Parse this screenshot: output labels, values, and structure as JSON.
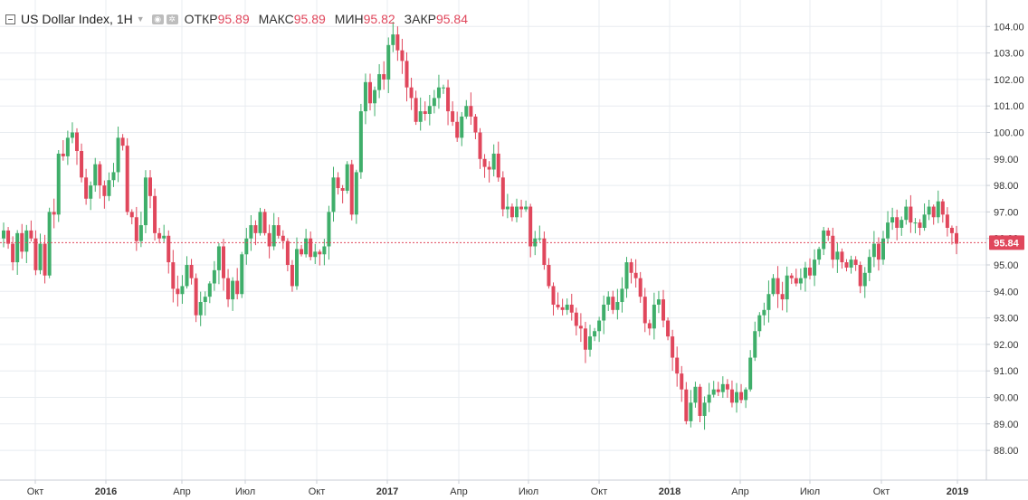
{
  "legend": {
    "title": "US Dollar Index, 1H",
    "open_label": "ОТКР",
    "open": "95.89",
    "high_label": "МАКС",
    "high": "95.89",
    "low_label": "МИН",
    "low": "95.82",
    "close_label": "ЗАКР",
    "close": "95.84",
    "icons": [
      "eye-icon",
      "gear-icon"
    ]
  },
  "colors": {
    "up": "#3fae6a",
    "down": "#e0475c",
    "grid": "#e8ecf0",
    "axis_text": "#333333",
    "price_line": "#e0475c"
  },
  "chart_data": {
    "type": "candlestick",
    "title": "US Dollar Index, 1H",
    "ylim": [
      87.8,
      104.3
    ],
    "y_ticks": [
      "88.00",
      "89.00",
      "90.00",
      "91.00",
      "92.00",
      "93.00",
      "94.00",
      "95.00",
      "96.00",
      "97.00",
      "98.00",
      "99.00",
      "100.00",
      "101.00",
      "102.00",
      "103.00",
      "104.00"
    ],
    "x_tick_labels": [
      "Окт",
      "2016",
      "Апр",
      "Июл",
      "Окт",
      "2017",
      "Апр",
      "Июл",
      "Окт",
      "2018",
      "Апр",
      "Июл",
      "Окт",
      "2019"
    ],
    "x_tick_bold": [
      "2016",
      "2017",
      "2018",
      "2019"
    ],
    "last_price": "95.84",
    "grid": true,
    "closes": [
      96.3,
      95.8,
      95.1,
      96.2,
      95.5,
      96.3,
      96.0,
      94.8,
      95.8,
      94.6,
      97.0,
      96.9,
      99.2,
      99.1,
      99.8,
      100.0,
      99.3,
      98.3,
      97.5,
      98.0,
      98.8,
      98.0,
      97.6,
      98.2,
      98.5,
      99.8,
      99.5,
      97.0,
      96.8,
      95.9,
      96.5,
      98.3,
      97.6,
      96.2,
      96.0,
      96.1,
      95.1,
      94.1,
      93.9,
      94.2,
      95.0,
      94.5,
      93.1,
      93.6,
      93.8,
      94.3,
      94.8,
      95.7,
      94.5,
      93.7,
      94.4,
      93.9,
      95.4,
      96.0,
      96.5,
      96.2,
      97.0,
      96.2,
      95.7,
      96.5,
      96.1,
      95.9,
      95.0,
      94.2,
      95.6,
      95.4,
      96.0,
      95.3,
      95.5,
      95.4,
      95.7,
      97.0,
      98.3,
      97.9,
      97.8,
      98.8,
      96.9,
      98.5,
      100.8,
      101.9,
      101.1,
      101.6,
      102.2,
      102.0,
      103.3,
      103.7,
      103.1,
      102.7,
      101.7,
      101.3,
      100.4,
      100.8,
      100.7,
      101.0,
      101.3,
      101.7,
      101.7,
      100.8,
      100.4,
      99.8,
      100.6,
      101.0,
      100.6,
      100.0,
      99.0,
      98.7,
      98.6,
      99.2,
      98.3,
      97.1,
      97.2,
      96.8,
      97.2,
      97.1,
      97.2,
      95.7,
      96.0,
      96.0,
      95.0,
      94.2,
      93.5,
      93.4,
      93.3,
      93.5,
      93.2,
      92.7,
      92.6,
      91.8,
      92.3,
      92.5,
      92.9,
      93.5,
      93.8,
      93.3,
      93.6,
      94.1,
      95.1,
      94.7,
      94.5,
      93.8,
      92.8,
      92.6,
      93.5,
      93.7,
      92.9,
      92.3,
      91.5,
      90.9,
      90.3,
      89.1,
      89.8,
      90.4,
      89.3,
      89.8,
      90.1,
      90.3,
      90.2,
      90.5,
      90.3,
      89.8,
      90.2,
      89.9,
      90.3,
      91.5,
      92.5,
      93.1,
      93.3,
      93.9,
      94.5,
      93.9,
      93.7,
      94.6,
      94.5,
      94.3,
      94.5,
      94.9,
      94.6,
      95.2,
      95.6,
      96.3,
      96.1,
      95.2,
      95.5,
      95.1,
      94.9,
      95.2,
      95.0,
      94.2,
      94.7,
      95.3,
      95.8,
      95.2,
      96.0,
      96.6,
      96.8,
      96.4,
      96.7,
      97.2,
      96.6,
      96.6,
      96.4,
      96.9,
      97.2,
      96.8,
      97.4,
      96.9,
      96.4,
      96.2,
      95.8
    ]
  }
}
